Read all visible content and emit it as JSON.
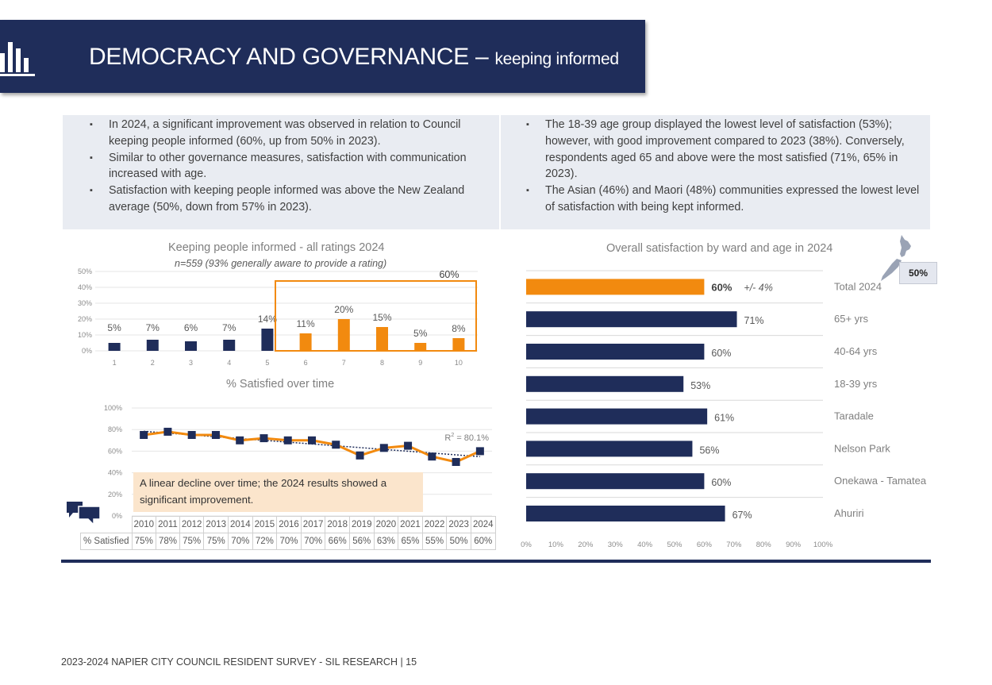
{
  "header": {
    "title": "DEMOCRACY AND GOVERNANCE – ",
    "subtitle": "keeping informed",
    "icon": "bar-chart-icon"
  },
  "summary_left": [
    "In 2024, a significant improvement was observed in relation to Council keeping people informed (60%, up from 50% in 2023).",
    "Similar to other governance measures, satisfaction with communication increased with age.",
    "Satisfaction with keeping people informed was above the New Zealand average (50%, down from 57% in 2023)."
  ],
  "summary_right": [
    "The 18-39 age group displayed the lowest level of satisfaction (53%); however, with good improvement compared to 2023 (38%). Conversely, respondents aged 65 and above were the most satisfied (71%, 65% in 2023).",
    "The Asian (46%) and Maori (48%) communities expressed the lowest level of satisfaction with being kept informed."
  ],
  "chart_data": [
    {
      "type": "bar",
      "title": "Keeping people informed - all ratings 2024",
      "subtitle": "n=559 (93% generally aware to provide a rating)",
      "categories": [
        "1",
        "2",
        "3",
        "4",
        "5",
        "6",
        "7",
        "8",
        "9",
        "10"
      ],
      "values": [
        5,
        7,
        6,
        7,
        14,
        11,
        20,
        15,
        5,
        8
      ],
      "value_labels": [
        "5%",
        "7%",
        "6%",
        "7%",
        "14%",
        "11%",
        "20%",
        "15%",
        "5%",
        "8%"
      ],
      "y_ticks": [
        "0%",
        "10%",
        "20%",
        "30%",
        "40%",
        "50%"
      ],
      "ylim": [
        0,
        50
      ],
      "highlight_group_label": "60%",
      "colors": {
        "low": "#1f2d5a",
        "high": "#f28a0f"
      }
    },
    {
      "type": "line",
      "title": "% Satisfied over time",
      "x": [
        "2010",
        "2011",
        "2012",
        "2013",
        "2014",
        "2015",
        "2016",
        "2017",
        "2018",
        "2019",
        "2020",
        "2021",
        "2022",
        "2023",
        "2024"
      ],
      "values": [
        75,
        78,
        75,
        75,
        70,
        72,
        70,
        70,
        66,
        56,
        63,
        65,
        55,
        50,
        60
      ],
      "value_labels": [
        "75%",
        "78%",
        "75%",
        "75%",
        "70%",
        "72%",
        "70%",
        "70%",
        "66%",
        "56%",
        "63%",
        "65%",
        "55%",
        "50%",
        "60%"
      ],
      "row_label": "% Satisfied",
      "y_ticks": [
        "0%",
        "20%",
        "40%",
        "60%",
        "80%",
        "100%"
      ],
      "ylim": [
        0,
        100
      ],
      "trendline": "linear",
      "r2_label": "R",
      "r2_value": " = 80.1%",
      "annotation": "A linear decline over time; the 2024 results showed a significant improvement.",
      "colors": {
        "line": "#f28a0f",
        "marker": "#1f2d5a",
        "trend": "#1f2d5a"
      }
    },
    {
      "type": "bar",
      "orientation": "horizontal",
      "title": "Overall satisfaction by ward and age in 2024",
      "categories": [
        "Total 2024",
        "65+ yrs",
        "40-64 yrs",
        "18-39 yrs",
        "Taradale",
        "Nelson Park",
        "Onekawa - Tamatea",
        "Ahuriri"
      ],
      "values": [
        60,
        71,
        60,
        53,
        61,
        56,
        60,
        67
      ],
      "value_labels": [
        "60%",
        "71%",
        "60%",
        "53%",
        "61%",
        "56%",
        "60%",
        "67%"
      ],
      "margin_label": "+/- 4%",
      "x_ticks": [
        "0%",
        "10%",
        "20%",
        "30%",
        "40%",
        "50%",
        "60%",
        "70%",
        "80%",
        "90%",
        "100%"
      ],
      "xlim": [
        0,
        100
      ],
      "nz_average_label": "50%",
      "colors": {
        "total": "#f28a0f",
        "other": "#1f2d5a"
      }
    }
  ],
  "footer": {
    "text": "2023-2024 NAPIER CITY COUNCIL RESIDENT SURVEY - SIL RESEARCH | 15"
  },
  "icons": {
    "comment": "speech-bubbles-icon",
    "map": "new-zealand-map-icon"
  }
}
